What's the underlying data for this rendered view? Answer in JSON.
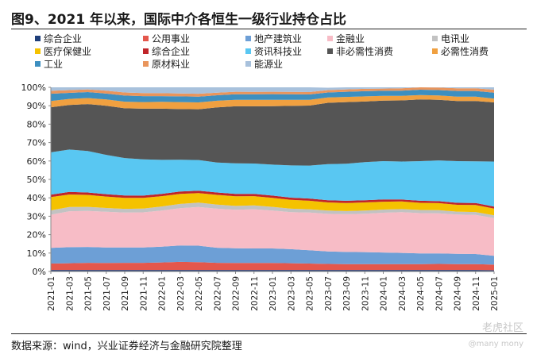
{
  "header": {
    "title": "图9、2021 年以来，国际中介各恒生一级行业持仓占比"
  },
  "footer": {
    "source": "数据来源：wind，兴业证券经济与金融研究院整理"
  },
  "watermark": {
    "brand": "老虎社区",
    "user": "@many mony"
  },
  "chart_data": {
    "type": "area",
    "stacked": true,
    "title": "图9、2021 年以来，国际中介各恒生一级行业持仓占比",
    "xlabel": "",
    "ylabel": "",
    "ylim": [
      0,
      100
    ],
    "yticks": [
      "0%",
      "10%",
      "20%",
      "30%",
      "40%",
      "50%",
      "60%",
      "70%",
      "80%",
      "90%",
      "100%"
    ],
    "x": [
      "2021-01",
      "2021-03",
      "2021-05",
      "2021-07",
      "2021-09",
      "2021-11",
      "2022-01",
      "2022-03",
      "2022-05",
      "2022-07",
      "2022-09",
      "2022-11",
      "2023-01",
      "2023-03",
      "2023-05",
      "2023-07",
      "2023-09",
      "2023-11",
      "2024-01",
      "2024-03",
      "2024-05",
      "2024-07",
      "2024-09",
      "2024-11",
      "2025-01"
    ],
    "legend": [
      "综合企业",
      "公用事业",
      "地产建筑业",
      "金融业",
      "电讯业",
      "医疗保健业",
      "综合企业",
      "资讯科技业",
      "非必需性消费",
      "必需性消费",
      "工业",
      "原材料业",
      "能源业"
    ],
    "series": [
      {
        "name": "综合企业",
        "color": "#1f3f7a",
        "values": [
          0.8,
          0.8,
          0.8,
          0.8,
          0.8,
          0.8,
          0.8,
          0.8,
          0.8,
          0.8,
          0.8,
          0.8,
          0.8,
          0.8,
          0.8,
          0.8,
          0.8,
          0.8,
          0.8,
          0.8,
          0.8,
          0.8,
          0.8,
          0.8,
          0.7
        ]
      },
      {
        "name": "公用事业",
        "color": "#e4574c",
        "values": [
          3.5,
          3.7,
          3.9,
          3.8,
          3.9,
          3.9,
          4.1,
          4.4,
          4.3,
          3.9,
          3.8,
          3.8,
          3.8,
          3.7,
          3.5,
          3.3,
          3.2,
          3.2,
          3.2,
          3.2,
          3.2,
          3.3,
          3.2,
          3.2,
          3.0
        ]
      },
      {
        "name": "地产建筑业",
        "color": "#6d9fd6",
        "values": [
          8.5,
          8.7,
          8.6,
          8.4,
          8.3,
          8.3,
          8.6,
          8.9,
          8.9,
          8.2,
          8.0,
          7.9,
          7.9,
          7.6,
          7.2,
          6.8,
          6.6,
          6.5,
          6.3,
          6.1,
          5.8,
          5.7,
          5.6,
          5.5,
          4.8
        ]
      },
      {
        "name": "金融业",
        "color": "#f7bcc6",
        "values": [
          18.0,
          19.5,
          19.6,
          19.4,
          19.0,
          19.1,
          19.6,
          20.3,
          21.0,
          21.2,
          20.9,
          21.3,
          20.6,
          20.1,
          20.5,
          20.4,
          20.5,
          20.9,
          21.6,
          22.1,
          21.9,
          21.8,
          21.3,
          21.2,
          20.5
        ]
      },
      {
        "name": "电讯业",
        "color": "#c2c2c2",
        "values": [
          2.4,
          2.3,
          2.2,
          2.1,
          2.0,
          2.1,
          2.2,
          2.3,
          2.4,
          2.2,
          2.1,
          2.1,
          2.0,
          1.9,
          1.8,
          1.8,
          1.7,
          1.7,
          1.7,
          1.7,
          1.7,
          1.7,
          1.6,
          1.6,
          1.5
        ]
      },
      {
        "name": "医疗保健业",
        "color": "#f5c200",
        "values": [
          7.2,
          6.8,
          6.5,
          6.2,
          6.0,
          5.8,
          5.6,
          5.4,
          5.2,
          5.3,
          5.2,
          5.0,
          4.9,
          4.8,
          4.6,
          4.4,
          4.4,
          4.4,
          4.3,
          4.1,
          3.9,
          3.8,
          3.7,
          3.8,
          3.7
        ]
      },
      {
        "name": "综合企业",
        "color": "#c0252a",
        "values": [
          1.3,
          1.4,
          1.3,
          1.3,
          1.3,
          1.2,
          1.2,
          1.3,
          1.3,
          1.3,
          1.3,
          1.2,
          1.2,
          1.2,
          1.2,
          1.2,
          1.2,
          1.2,
          1.2,
          1.1,
          1.1,
          1.1,
          1.1,
          1.1,
          1.0
        ]
      },
      {
        "name": "资讯科技业",
        "color": "#59c7f2",
        "values": [
          23.0,
          23.0,
          22.5,
          21.3,
          20.3,
          19.7,
          18.5,
          17.3,
          16.6,
          16.3,
          16.6,
          16.5,
          16.8,
          17.5,
          17.9,
          19.6,
          20.1,
          20.7,
          20.8,
          20.6,
          21.5,
          22.1,
          22.6,
          22.6,
          24.5
        ]
      },
      {
        "name": "非必需性消费",
        "color": "#555555",
        "values": [
          24.5,
          24.2,
          25.5,
          26.7,
          27.0,
          27.5,
          27.8,
          27.5,
          27.6,
          29.9,
          31.0,
          31.1,
          31.8,
          32.3,
          32.6,
          33.3,
          33.5,
          32.9,
          32.9,
          33.2,
          33.5,
          32.9,
          32.7,
          32.8,
          32.1
        ]
      },
      {
        "name": "必需性消费",
        "color": "#f0a040",
        "values": [
          3.4,
          3.3,
          3.3,
          3.4,
          3.6,
          3.6,
          3.7,
          3.8,
          3.7,
          3.6,
          3.5,
          3.5,
          3.4,
          3.3,
          3.1,
          2.9,
          2.8,
          2.8,
          2.6,
          2.5,
          2.4,
          2.4,
          2.3,
          2.3,
          2.1
        ]
      },
      {
        "name": "工业",
        "color": "#3d8fc0",
        "values": [
          3.9,
          3.3,
          3.2,
          3.2,
          3.3,
          3.2,
          3.1,
          3.1,
          3.1,
          3.0,
          3.0,
          3.0,
          3.1,
          3.0,
          2.9,
          2.7,
          2.8,
          2.8,
          2.7,
          2.8,
          2.9,
          2.9,
          3.1,
          3.1,
          3.2
        ]
      },
      {
        "name": "原材料业",
        "color": "#e9955c",
        "values": [
          1.6,
          1.5,
          1.5,
          1.6,
          1.7,
          1.7,
          1.6,
          1.6,
          1.6,
          1.4,
          1.4,
          1.3,
          1.3,
          1.3,
          1.3,
          1.3,
          1.3,
          1.3,
          1.2,
          1.3,
          1.3,
          1.4,
          1.5,
          1.5,
          1.6
        ]
      },
      {
        "name": "能源业",
        "color": "#a8c1dc",
        "values": [
          1.9,
          1.5,
          1.1,
          1.8,
          2.8,
          3.1,
          3.2,
          3.3,
          3.5,
          2.9,
          2.4,
          2.5,
          2.4,
          2.5,
          2.6,
          1.3,
          1.1,
          1.1,
          0.7,
          0.5,
          0.1,
          0.1,
          0.5,
          1.0,
          1.3
        ]
      }
    ]
  }
}
